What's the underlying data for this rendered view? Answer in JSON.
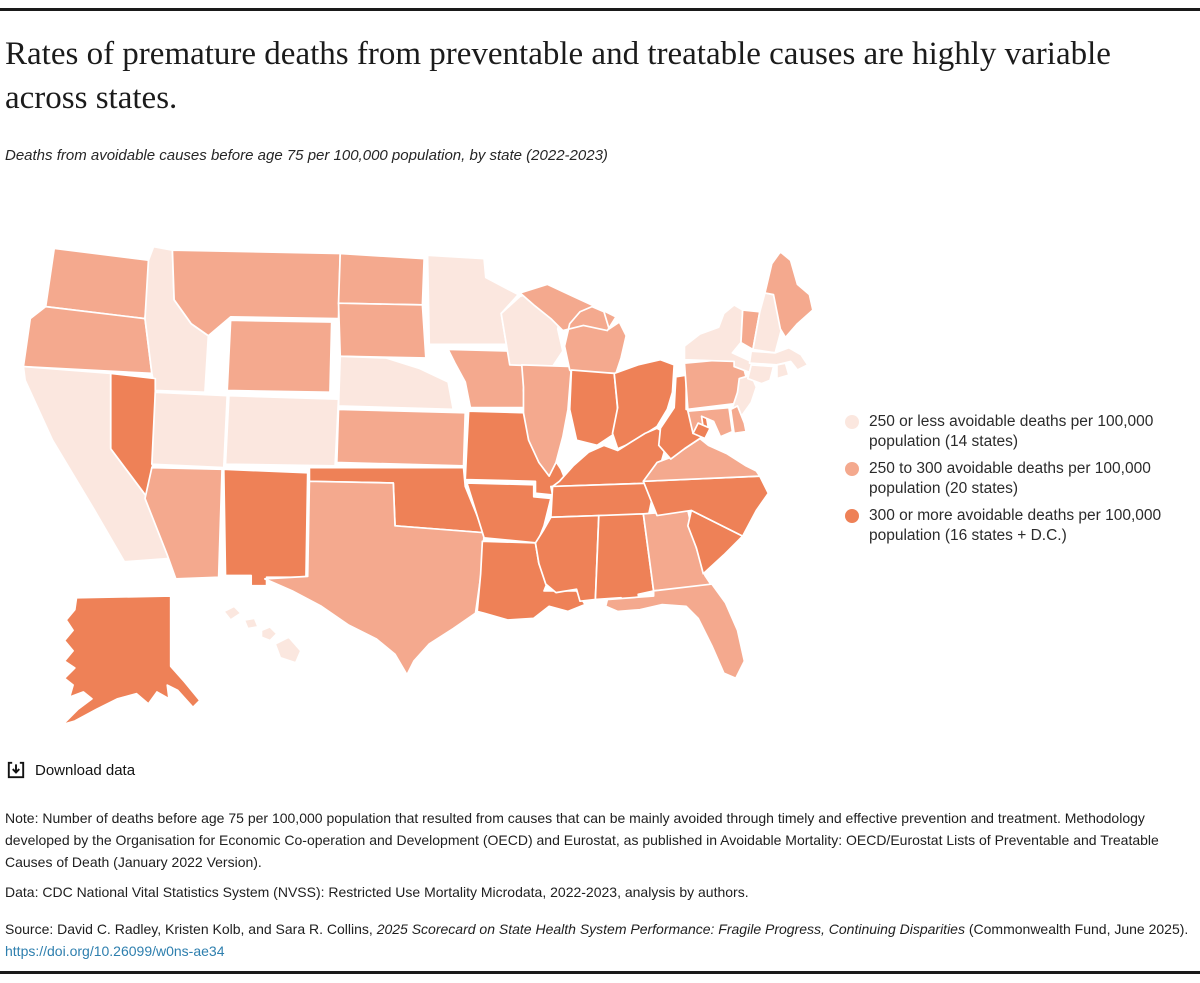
{
  "page": {
    "title": "Rates of premature deaths from preventable and treatable causes are highly variable across states.",
    "subtitle": "Deaths from avoidable causes before age 75 per 100,000 population, by state (2022-2023)"
  },
  "download": {
    "label": "Download data"
  },
  "footer": {
    "note": "Note: Number of deaths before age 75 per 100,000 population that resulted from causes that can be mainly avoided through timely and effective prevention and treatment. Methodology developed by the Organisation for Economic Co-operation and Development (OECD) and Eurostat, as published in Avoidable Mortality: OECD/Eurostat Lists of Preventable and Treatable Causes of Death (January 2022 Version).",
    "data": "Data: CDC National Vital Statistics System (NVSS): Restricted Use Mortality Microdata, 2022-2023, analysis by authors.",
    "source_prefix": "Source: David C. Radley, Kristen Kolb, and Sara R. Collins, ",
    "source_italic": "2025 Scorecard on State Health System Performance: Fragile Progress, Continuing Disparities",
    "source_suffix": " (Commonwealth Fund, June 2025).",
    "link": "https://doi.org/10.26099/w0ns-ae34"
  },
  "chart_data": {
    "type": "choropleth_map",
    "title": "Rates of premature deaths from preventable and treatable causes are highly variable across states.",
    "subtitle": "Deaths from avoidable causes before age 75 per 100,000 population, by state (2022-2023)",
    "legend_position": "right",
    "border_color": "#ffffff",
    "categories": [
      {
        "key": "low",
        "label": "250 or less avoidable deaths per 100,000 population (14 states)",
        "color": "#fbe7df",
        "count": 14
      },
      {
        "key": "mid",
        "label": "250 to 300 avoidable deaths per 100,000 population (20 states)",
        "color": "#f4a98e",
        "count": 20
      },
      {
        "key": "high",
        "label": "300 or more avoidable deaths per 100,000 population (16 states + D.C.)",
        "color": "#ee8157",
        "count": 17
      }
    ],
    "states": {
      "WA": {
        "name": "Washington",
        "category": "mid"
      },
      "OR": {
        "name": "Oregon",
        "category": "mid"
      },
      "CA": {
        "name": "California",
        "category": "low"
      },
      "NV": {
        "name": "Nevada",
        "category": "high"
      },
      "ID": {
        "name": "Idaho",
        "category": "low"
      },
      "MT": {
        "name": "Montana",
        "category": "mid"
      },
      "WY": {
        "name": "Wyoming",
        "category": "mid"
      },
      "UT": {
        "name": "Utah",
        "category": "low"
      },
      "CO": {
        "name": "Colorado",
        "category": "low"
      },
      "AZ": {
        "name": "Arizona",
        "category": "mid"
      },
      "NM": {
        "name": "New Mexico",
        "category": "high"
      },
      "ND": {
        "name": "North Dakota",
        "category": "mid"
      },
      "SD": {
        "name": "South Dakota",
        "category": "mid"
      },
      "NE": {
        "name": "Nebraska",
        "category": "low"
      },
      "KS": {
        "name": "Kansas",
        "category": "mid"
      },
      "OK": {
        "name": "Oklahoma",
        "category": "high"
      },
      "TX": {
        "name": "Texas",
        "category": "mid"
      },
      "MN": {
        "name": "Minnesota",
        "category": "low"
      },
      "IA": {
        "name": "Iowa",
        "category": "mid"
      },
      "MO": {
        "name": "Missouri",
        "category": "high"
      },
      "AR": {
        "name": "Arkansas",
        "category": "high"
      },
      "LA": {
        "name": "Louisiana",
        "category": "high"
      },
      "WI": {
        "name": "Wisconsin",
        "category": "low"
      },
      "IL": {
        "name": "Illinois",
        "category": "mid"
      },
      "MI": {
        "name": "Michigan",
        "category": "mid"
      },
      "IN": {
        "name": "Indiana",
        "category": "high"
      },
      "OH": {
        "name": "Ohio",
        "category": "high"
      },
      "KY": {
        "name": "Kentucky",
        "category": "high"
      },
      "TN": {
        "name": "Tennessee",
        "category": "high"
      },
      "MS": {
        "name": "Mississippi",
        "category": "high"
      },
      "AL": {
        "name": "Alabama",
        "category": "high"
      },
      "GA": {
        "name": "Georgia",
        "category": "mid"
      },
      "FL": {
        "name": "Florida",
        "category": "mid"
      },
      "SC": {
        "name": "South Carolina",
        "category": "high"
      },
      "NC": {
        "name": "North Carolina",
        "category": "high"
      },
      "VA": {
        "name": "Virginia",
        "category": "mid"
      },
      "WV": {
        "name": "West Virginia",
        "category": "high"
      },
      "PA": {
        "name": "Pennsylvania",
        "category": "mid"
      },
      "NY": {
        "name": "New York",
        "category": "low"
      },
      "NJ": {
        "name": "New Jersey",
        "category": "low"
      },
      "DE": {
        "name": "Delaware",
        "category": "mid"
      },
      "MD": {
        "name": "Maryland",
        "category": "mid"
      },
      "VT": {
        "name": "Vermont",
        "category": "mid"
      },
      "NH": {
        "name": "New Hampshire",
        "category": "low"
      },
      "ME": {
        "name": "Maine",
        "category": "mid"
      },
      "MA": {
        "name": "Massachusetts",
        "category": "low"
      },
      "CT": {
        "name": "Connecticut",
        "category": "low"
      },
      "RI": {
        "name": "Rhode Island",
        "category": "low"
      },
      "AK": {
        "name": "Alaska",
        "category": "high"
      },
      "HI": {
        "name": "Hawaii",
        "category": "low"
      },
      "DC": {
        "name": "District of Columbia",
        "category": "high"
      }
    }
  }
}
